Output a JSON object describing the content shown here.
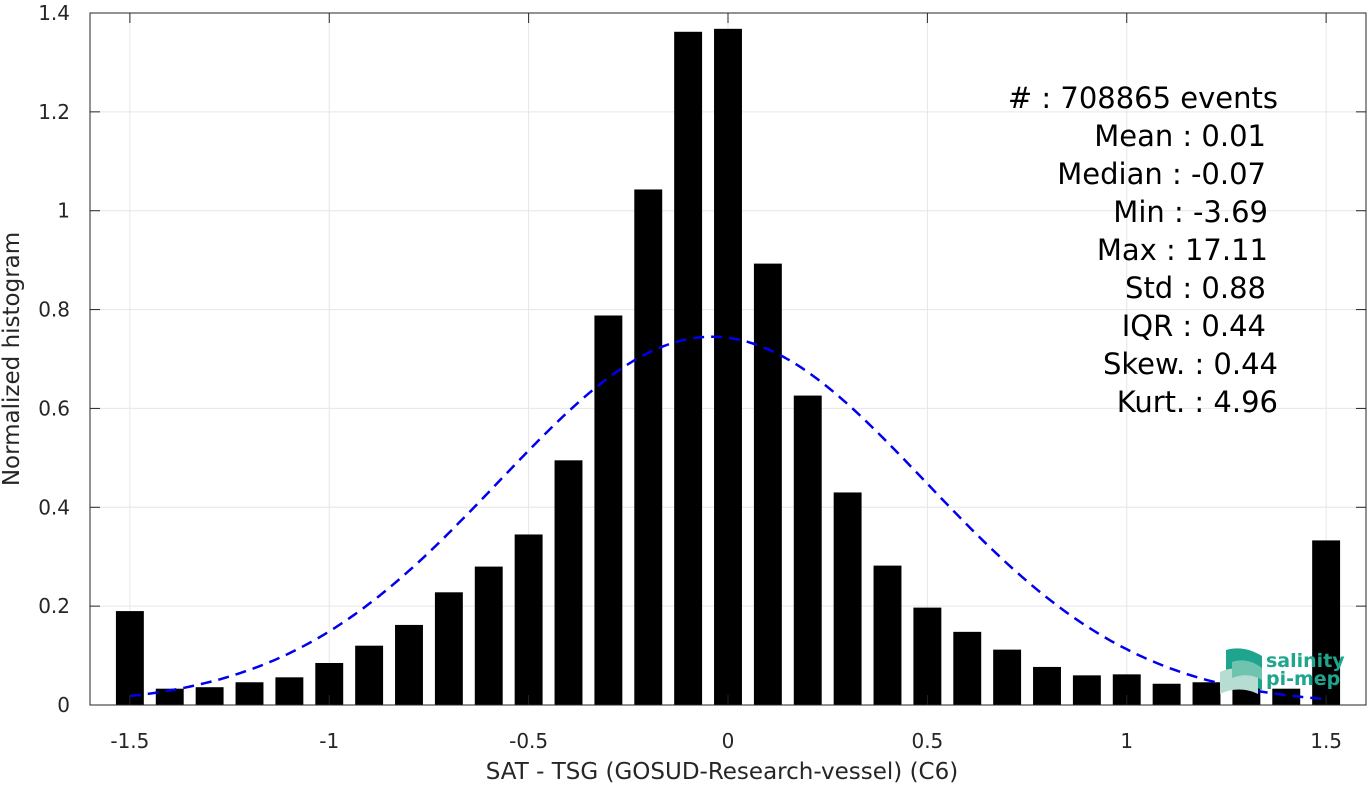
{
  "chart_data": {
    "type": "bar",
    "title": "",
    "xlabel": "SAT - TSG (GOSUD-Research-vessel) (C6)",
    "ylabel": "Normalized histogram",
    "xlim": [
      -1.6,
      1.6
    ],
    "ylim": [
      0,
      1.4
    ],
    "xticks": [
      -1.5,
      -1,
      -0.5,
      0,
      0.5,
      1,
      1.5
    ],
    "xtick_labels": [
      "-1.5",
      "-1",
      "-0.5",
      "0",
      "0.5",
      "1",
      "1.5"
    ],
    "yticks": [
      0,
      0.2,
      0.4,
      0.6,
      0.8,
      1,
      1.2,
      1.4
    ],
    "ytick_labels": [
      "0",
      "0.2",
      "0.4",
      "0.6",
      "0.8",
      "1",
      "1.2",
      "1.4"
    ],
    "grid": true,
    "bar_width": 0.07,
    "bar_color": "#000000",
    "x": [
      -1.5,
      -1.4,
      -1.3,
      -1.2,
      -1.1,
      -1.0,
      -0.9,
      -0.8,
      -0.7,
      -0.6,
      -0.5,
      -0.4,
      -0.3,
      -0.2,
      -0.1,
      0.0,
      0.1,
      0.2,
      0.3,
      0.4,
      0.5,
      0.6,
      0.7,
      0.8,
      0.9,
      1.0,
      1.1,
      1.2,
      1.3,
      1.4,
      1.5
    ],
    "values": [
      0.19,
      0.033,
      0.036,
      0.046,
      0.056,
      0.085,
      0.12,
      0.162,
      0.228,
      0.28,
      0.345,
      0.495,
      0.788,
      1.043,
      1.362,
      1.368,
      0.893,
      0.626,
      0.43,
      0.282,
      0.197,
      0.148,
      0.112,
      0.077,
      0.06,
      0.062,
      0.043,
      0.046,
      0.04,
      0.033,
      0.333
    ],
    "fit_curve": {
      "style": "dashed",
      "color": "#0000ee",
      "peak": 0.745,
      "center": -0.04,
      "sigma": 0.535,
      "x_range": [
        -1.5,
        1.5
      ]
    },
    "stats": [
      "#  : 708865 events",
      "Mean : 0.01",
      "Median : -0.07",
      "Min : -3.69",
      "Max : 17.11",
      "Std : 0.88",
      "IQR : 0.44",
      "Skew. : 0.44",
      "Kurt. : 4.96"
    ]
  },
  "logo": {
    "line1": "salinity",
    "line2": "pi-mep",
    "color": "#1fa58e"
  }
}
